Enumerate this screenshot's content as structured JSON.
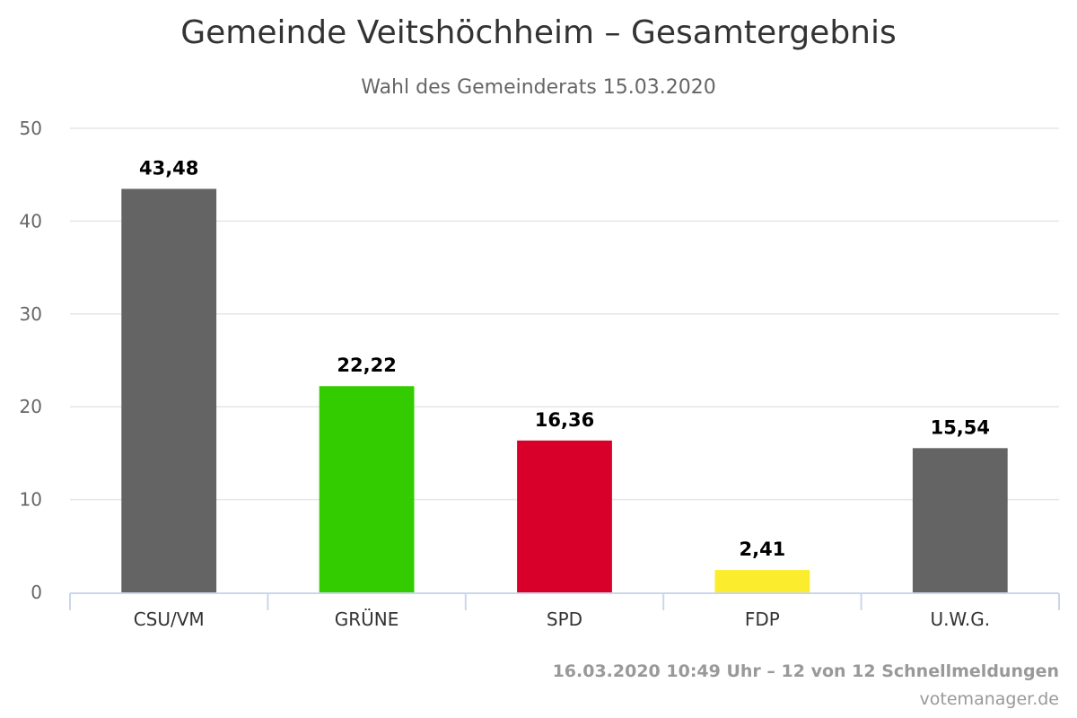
{
  "chart_data": {
    "type": "bar",
    "title": "Gemeinde Veitshöchheim – Gesamtergebnis",
    "subtitle": "Wahl des Gemeinderats 15.03.2020",
    "categories": [
      "CSU/VM",
      "GRÜNE",
      "SPD",
      "FDP",
      "U.W.G."
    ],
    "values": [
      43.48,
      22.22,
      16.36,
      2.41,
      15.54
    ],
    "value_labels": [
      "43,48",
      "22,22",
      "16,36",
      "2,41",
      "15,54"
    ],
    "colors": [
      "#646464",
      "#33cc00",
      "#d8002b",
      "#fcec2e",
      "#646464"
    ],
    "ylim": [
      0,
      50
    ],
    "yticks": [
      0,
      10,
      20,
      30,
      40,
      50
    ],
    "grid": true,
    "legend": "none",
    "xlabel": "",
    "ylabel": ""
  },
  "footer": {
    "status": "16.03.2020 10:49 Uhr – 12 von 12 Schnellmeldungen",
    "source": "votemanager.de"
  }
}
